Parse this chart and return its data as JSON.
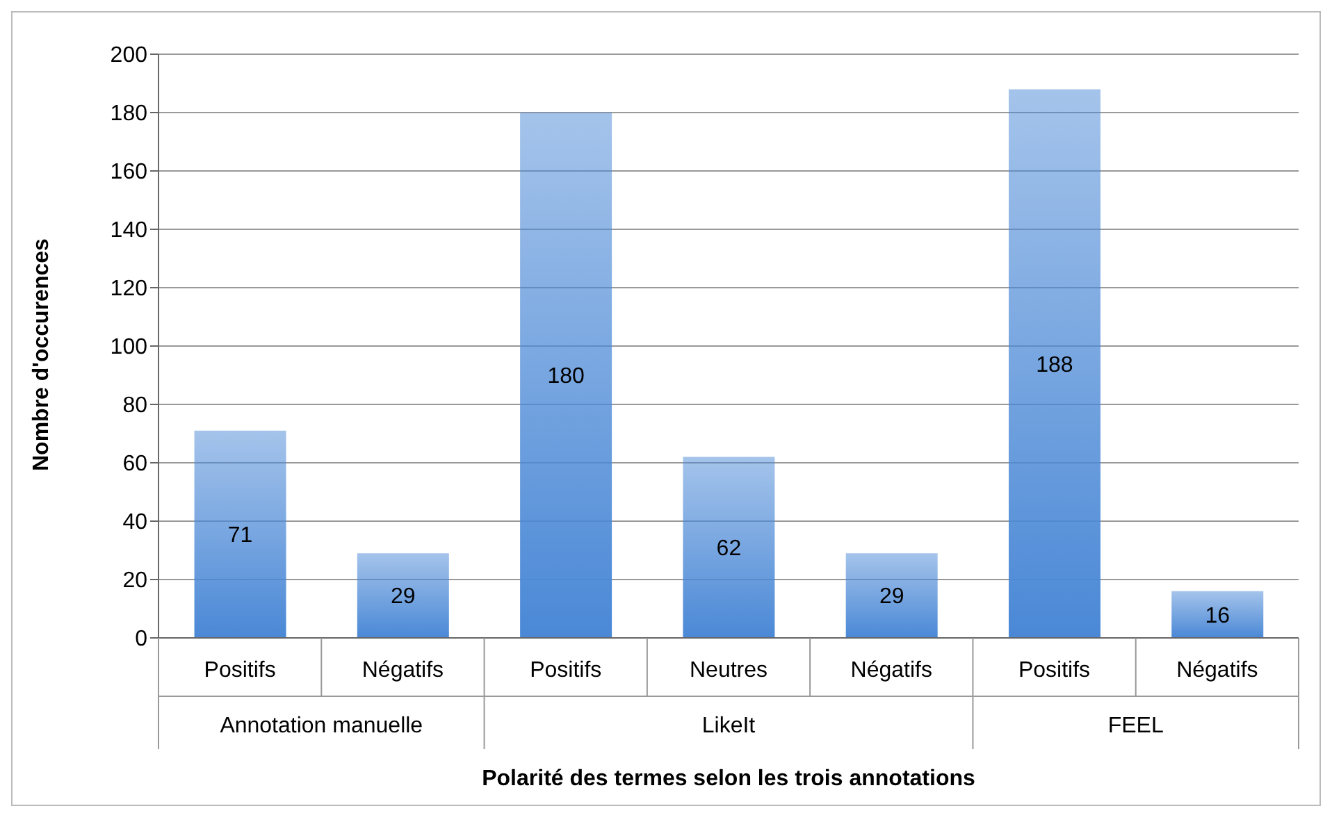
{
  "chart_data": {
    "type": "bar",
    "xlabel": "Polarité des termes selon les trois annotations",
    "ylabel": "Nombre d'occurences",
    "categories": [
      "Positifs",
      "Négatifs",
      "Positifs",
      "Neutres",
      "Négatifs",
      "Positifs",
      "Négatifs"
    ],
    "values": [
      71,
      29,
      180,
      62,
      29,
      188,
      16
    ],
    "color": "#4a88d6",
    "annotations": [
      "Annotation manuelle",
      "LikeIt",
      "FEEL"
    ],
    "ylim": [
      0,
      200
    ],
    "yticks": [
      0,
      20,
      40,
      60,
      80,
      100,
      120,
      140,
      160,
      180,
      200
    ],
    "grid": "y",
    "data_labels": true
  }
}
